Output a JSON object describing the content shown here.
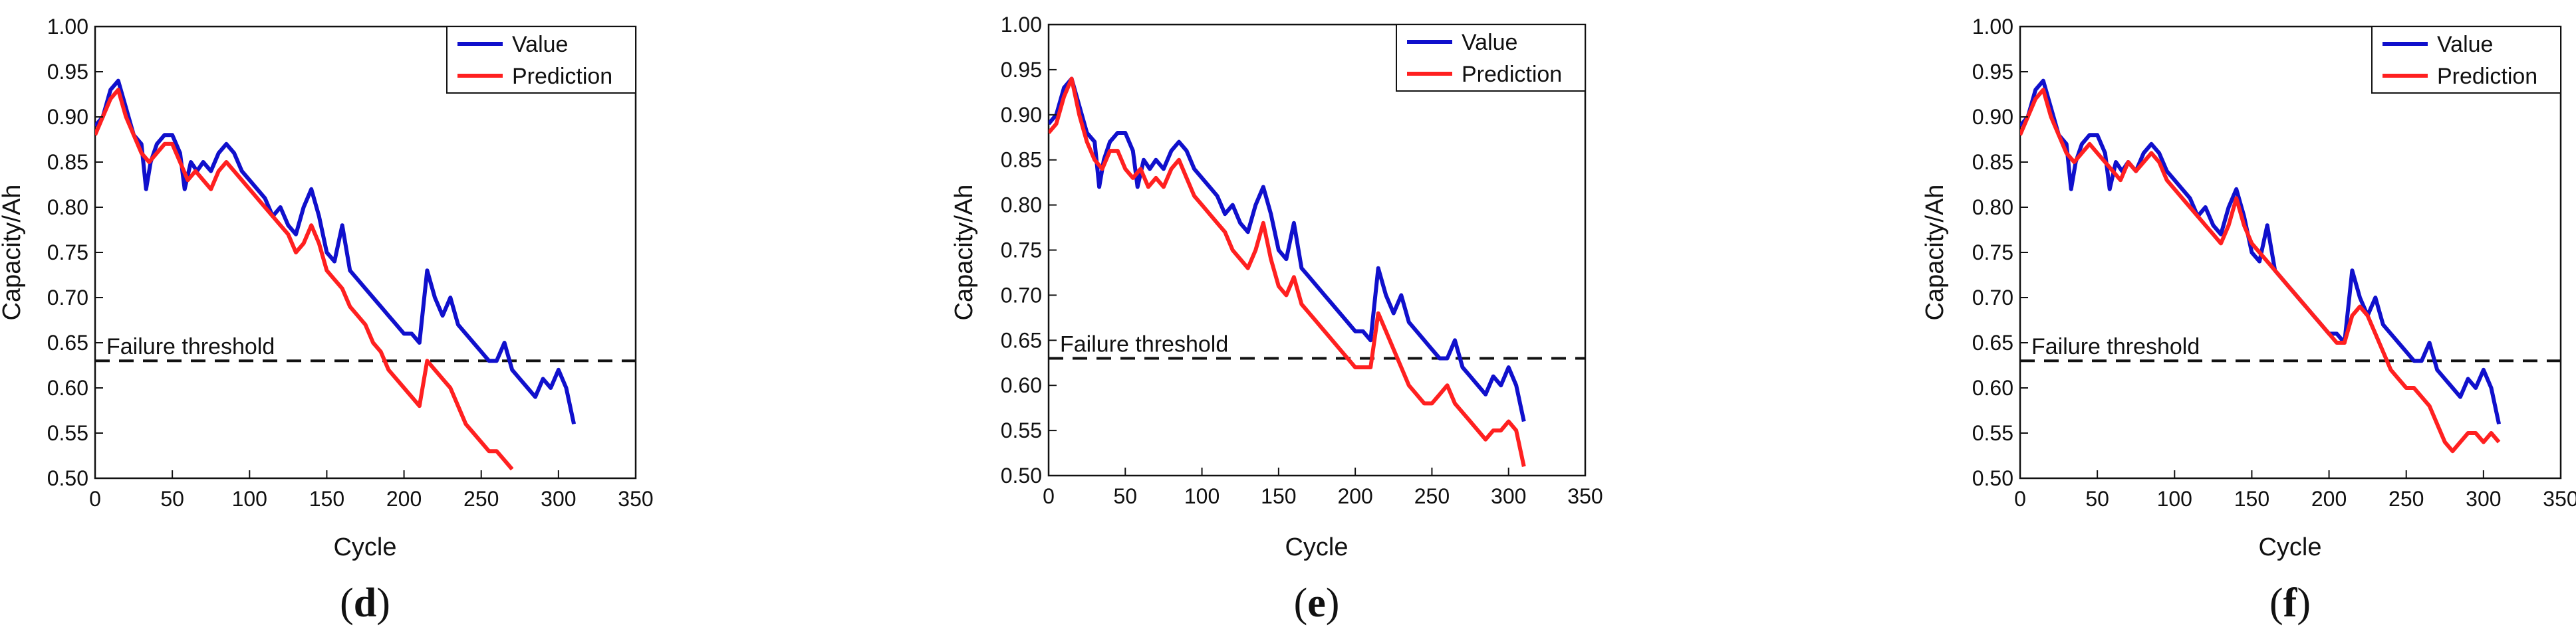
{
  "chart_data": [
    {
      "type": "line",
      "panel_label": "d",
      "xlabel": "Cycle",
      "ylabel": "Capacity/Ah",
      "xlim": [
        0,
        350
      ],
      "ylim": [
        0.5,
        1.0
      ],
      "xticks": [
        0,
        50,
        100,
        150,
        200,
        250,
        300,
        350
      ],
      "yticks": [
        0.5,
        0.55,
        0.6,
        0.65,
        0.7,
        0.75,
        0.8,
        0.85,
        0.9,
        0.95,
        1.0
      ],
      "ytick_labels": [
        "0.50",
        "0.55",
        "0.60",
        "0.65",
        "0.70",
        "0.75",
        "0.80",
        "0.85",
        "0.90",
        "0.95",
        "1.00"
      ],
      "legend_position": "top-right",
      "threshold": {
        "value": 0.63,
        "label": "Failure threshold",
        "color": "#111111"
      },
      "series": [
        {
          "name": "Value",
          "color": "#1010cc",
          "x": [
            0,
            5,
            10,
            15,
            20,
            25,
            30,
            33,
            36,
            40,
            45,
            50,
            55,
            58,
            62,
            66,
            70,
            75,
            80,
            85,
            90,
            95,
            100,
            105,
            110,
            115,
            120,
            125,
            130,
            135,
            140,
            145,
            150,
            155,
            160,
            165,
            170,
            175,
            180,
            185,
            190,
            195,
            200,
            205,
            210,
            215,
            220,
            225,
            230,
            235,
            240,
            245,
            250,
            255,
            260,
            265,
            270,
            275,
            280,
            285,
            290,
            295,
            300,
            305,
            310
          ],
          "values": [
            0.89,
            0.9,
            0.93,
            0.94,
            0.91,
            0.88,
            0.87,
            0.82,
            0.85,
            0.87,
            0.88,
            0.88,
            0.86,
            0.82,
            0.85,
            0.84,
            0.85,
            0.84,
            0.86,
            0.87,
            0.86,
            0.84,
            0.83,
            0.82,
            0.81,
            0.79,
            0.8,
            0.78,
            0.77,
            0.8,
            0.82,
            0.79,
            0.75,
            0.74,
            0.78,
            0.73,
            0.72,
            0.71,
            0.7,
            0.69,
            0.68,
            0.67,
            0.66,
            0.66,
            0.65,
            0.73,
            0.7,
            0.68,
            0.7,
            0.67,
            0.66,
            0.65,
            0.64,
            0.63,
            0.63,
            0.65,
            0.62,
            0.61,
            0.6,
            0.59,
            0.61,
            0.6,
            0.62,
            0.6,
            0.56
          ]
        },
        {
          "name": "Prediction",
          "color": "#ff2020",
          "x": [
            0,
            5,
            10,
            15,
            20,
            25,
            30,
            35,
            40,
            45,
            50,
            55,
            60,
            65,
            70,
            75,
            80,
            85,
            90,
            95,
            100,
            105,
            110,
            115,
            120,
            125,
            130,
            135,
            140,
            145,
            150,
            155,
            160,
            165,
            170,
            175,
            180,
            185,
            190,
            195,
            200,
            205,
            210,
            215,
            220,
            225,
            230,
            235,
            240,
            245,
            250,
            255,
            260,
            265,
            270
          ],
          "values": [
            0.88,
            0.9,
            0.92,
            0.93,
            0.9,
            0.88,
            0.86,
            0.85,
            0.86,
            0.87,
            0.87,
            0.85,
            0.83,
            0.84,
            0.83,
            0.82,
            0.84,
            0.85,
            0.84,
            0.83,
            0.82,
            0.81,
            0.8,
            0.79,
            0.78,
            0.77,
            0.75,
            0.76,
            0.78,
            0.76,
            0.73,
            0.72,
            0.71,
            0.69,
            0.68,
            0.67,
            0.65,
            0.64,
            0.62,
            0.61,
            0.6,
            0.59,
            0.58,
            0.63,
            0.62,
            0.61,
            0.6,
            0.58,
            0.56,
            0.55,
            0.54,
            0.53,
            0.53,
            0.52,
            0.51
          ]
        }
      ]
    },
    {
      "type": "line",
      "panel_label": "e",
      "xlabel": "Cycle",
      "ylabel": "Capacity/Ah",
      "xlim": [
        0,
        350
      ],
      "ylim": [
        0.5,
        1.0
      ],
      "xticks": [
        0,
        50,
        100,
        150,
        200,
        250,
        300,
        350
      ],
      "yticks": [
        0.5,
        0.55,
        0.6,
        0.65,
        0.7,
        0.75,
        0.8,
        0.85,
        0.9,
        0.95,
        1.0
      ],
      "ytick_labels": [
        "0.50",
        "0.55",
        "0.60",
        "0.65",
        "0.70",
        "0.75",
        "0.80",
        "0.85",
        "0.90",
        "0.95",
        "1.00"
      ],
      "legend_position": "top-right",
      "threshold": {
        "value": 0.63,
        "label": "Failure threshold",
        "color": "#111111"
      },
      "series": [
        {
          "name": "Value",
          "color": "#1010cc",
          "x": [
            0,
            5,
            10,
            15,
            20,
            25,
            30,
            33,
            36,
            40,
            45,
            50,
            55,
            58,
            62,
            66,
            70,
            75,
            80,
            85,
            90,
            95,
            100,
            105,
            110,
            115,
            120,
            125,
            130,
            135,
            140,
            145,
            150,
            155,
            160,
            165,
            170,
            175,
            180,
            185,
            190,
            195,
            200,
            205,
            210,
            215,
            220,
            225,
            230,
            235,
            240,
            245,
            250,
            255,
            260,
            265,
            270,
            275,
            280,
            285,
            290,
            295,
            300,
            305,
            310
          ],
          "values": [
            0.89,
            0.9,
            0.93,
            0.94,
            0.91,
            0.88,
            0.87,
            0.82,
            0.85,
            0.87,
            0.88,
            0.88,
            0.86,
            0.82,
            0.85,
            0.84,
            0.85,
            0.84,
            0.86,
            0.87,
            0.86,
            0.84,
            0.83,
            0.82,
            0.81,
            0.79,
            0.8,
            0.78,
            0.77,
            0.8,
            0.82,
            0.79,
            0.75,
            0.74,
            0.78,
            0.73,
            0.72,
            0.71,
            0.7,
            0.69,
            0.68,
            0.67,
            0.66,
            0.66,
            0.65,
            0.73,
            0.7,
            0.68,
            0.7,
            0.67,
            0.66,
            0.65,
            0.64,
            0.63,
            0.63,
            0.65,
            0.62,
            0.61,
            0.6,
            0.59,
            0.61,
            0.6,
            0.62,
            0.6,
            0.56
          ]
        },
        {
          "name": "Prediction",
          "color": "#ff2020",
          "x": [
            0,
            5,
            10,
            15,
            20,
            25,
            30,
            35,
            40,
            45,
            50,
            55,
            60,
            65,
            70,
            75,
            80,
            85,
            90,
            95,
            100,
            105,
            110,
            115,
            120,
            125,
            130,
            135,
            140,
            145,
            150,
            155,
            160,
            165,
            170,
            175,
            180,
            185,
            190,
            195,
            200,
            205,
            210,
            215,
            220,
            225,
            230,
            235,
            240,
            245,
            250,
            255,
            260,
            265,
            270,
            275,
            280,
            285,
            290,
            295,
            300,
            305,
            310
          ],
          "values": [
            0.88,
            0.89,
            0.92,
            0.94,
            0.9,
            0.87,
            0.85,
            0.84,
            0.86,
            0.86,
            0.84,
            0.83,
            0.84,
            0.82,
            0.83,
            0.82,
            0.84,
            0.85,
            0.83,
            0.81,
            0.8,
            0.79,
            0.78,
            0.77,
            0.75,
            0.74,
            0.73,
            0.75,
            0.78,
            0.74,
            0.71,
            0.7,
            0.72,
            0.69,
            0.68,
            0.67,
            0.66,
            0.65,
            0.64,
            0.63,
            0.62,
            0.62,
            0.62,
            0.68,
            0.66,
            0.64,
            0.62,
            0.6,
            0.59,
            0.58,
            0.58,
            0.59,
            0.6,
            0.58,
            0.57,
            0.56,
            0.55,
            0.54,
            0.55,
            0.55,
            0.56,
            0.55,
            0.51
          ]
        }
      ]
    },
    {
      "type": "line",
      "panel_label": "f",
      "xlabel": "Cycle",
      "ylabel": "Capacity/Ah",
      "xlim": [
        0,
        350
      ],
      "ylim": [
        0.5,
        1.0
      ],
      "xticks": [
        0,
        50,
        100,
        150,
        200,
        250,
        300,
        350
      ],
      "yticks": [
        0.5,
        0.55,
        0.6,
        0.65,
        0.7,
        0.75,
        0.8,
        0.85,
        0.9,
        0.95,
        1.0
      ],
      "ytick_labels": [
        "0.50",
        "0.55",
        "0.60",
        "0.65",
        "0.70",
        "0.75",
        "0.80",
        "0.85",
        "0.90",
        "0.95",
        "1.00"
      ],
      "legend_position": "top-right",
      "threshold": {
        "value": 0.63,
        "label": "Failure threshold",
        "color": "#111111"
      },
      "series": [
        {
          "name": "Value",
          "color": "#1010cc",
          "x": [
            0,
            5,
            10,
            15,
            20,
            25,
            30,
            33,
            36,
            40,
            45,
            50,
            55,
            58,
            62,
            66,
            70,
            75,
            80,
            85,
            90,
            95,
            100,
            105,
            110,
            115,
            120,
            125,
            130,
            135,
            140,
            145,
            150,
            155,
            160,
            165,
            170,
            175,
            180,
            185,
            190,
            195,
            200,
            205,
            210,
            215,
            220,
            225,
            230,
            235,
            240,
            245,
            250,
            255,
            260,
            265,
            270,
            275,
            280,
            285,
            290,
            295,
            300,
            305,
            310
          ],
          "values": [
            0.89,
            0.9,
            0.93,
            0.94,
            0.91,
            0.88,
            0.87,
            0.82,
            0.85,
            0.87,
            0.88,
            0.88,
            0.86,
            0.82,
            0.85,
            0.84,
            0.85,
            0.84,
            0.86,
            0.87,
            0.86,
            0.84,
            0.83,
            0.82,
            0.81,
            0.79,
            0.8,
            0.78,
            0.77,
            0.8,
            0.82,
            0.79,
            0.75,
            0.74,
            0.78,
            0.73,
            0.72,
            0.71,
            0.7,
            0.69,
            0.68,
            0.67,
            0.66,
            0.66,
            0.65,
            0.73,
            0.7,
            0.68,
            0.7,
            0.67,
            0.66,
            0.65,
            0.64,
            0.63,
            0.63,
            0.65,
            0.62,
            0.61,
            0.6,
            0.59,
            0.61,
            0.6,
            0.62,
            0.6,
            0.56
          ]
        },
        {
          "name": "Prediction",
          "color": "#ff2020",
          "x": [
            0,
            5,
            10,
            15,
            20,
            25,
            30,
            35,
            40,
            45,
            50,
            55,
            60,
            65,
            70,
            75,
            80,
            85,
            90,
            95,
            100,
            105,
            110,
            115,
            120,
            125,
            130,
            135,
            140,
            145,
            150,
            155,
            160,
            165,
            170,
            175,
            180,
            185,
            190,
            195,
            200,
            205,
            210,
            215,
            220,
            225,
            230,
            235,
            240,
            245,
            250,
            255,
            260,
            265,
            270,
            275,
            280,
            285,
            290,
            295,
            300,
            305,
            310
          ],
          "values": [
            0.88,
            0.9,
            0.92,
            0.93,
            0.9,
            0.88,
            0.86,
            0.85,
            0.86,
            0.87,
            0.86,
            0.85,
            0.84,
            0.83,
            0.85,
            0.84,
            0.85,
            0.86,
            0.85,
            0.83,
            0.82,
            0.81,
            0.8,
            0.79,
            0.78,
            0.77,
            0.76,
            0.78,
            0.81,
            0.78,
            0.76,
            0.75,
            0.74,
            0.73,
            0.72,
            0.71,
            0.7,
            0.69,
            0.68,
            0.67,
            0.66,
            0.65,
            0.65,
            0.68,
            0.69,
            0.68,
            0.66,
            0.64,
            0.62,
            0.61,
            0.6,
            0.6,
            0.59,
            0.58,
            0.56,
            0.54,
            0.53,
            0.54,
            0.55,
            0.55,
            0.54,
            0.55,
            0.54
          ]
        }
      ]
    }
  ]
}
